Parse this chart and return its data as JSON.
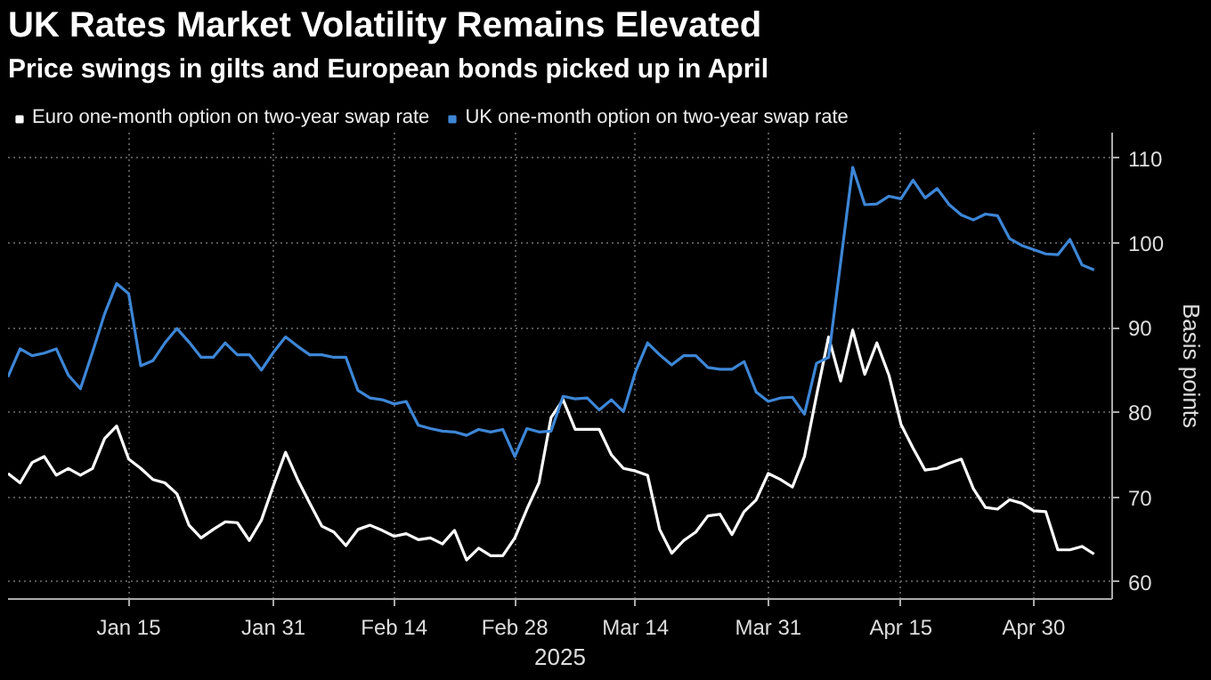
{
  "chart_data": {
    "type": "line",
    "title": "UK Rates Market Volatility Remains Elevated",
    "subtitle": "Price swings in gilts and European bonds picked up in April",
    "xlabel": "2025",
    "ylabel": "Basis points",
    "categories": [
      null,
      null,
      null,
      null,
      null,
      null,
      null,
      null,
      null,
      null,
      "Jan 15",
      null,
      null,
      null,
      null,
      null,
      null,
      null,
      null,
      null,
      null,
      null,
      "Jan 31",
      null,
      null,
      null,
      null,
      null,
      null,
      null,
      null,
      null,
      "Feb 14",
      null,
      null,
      null,
      null,
      null,
      null,
      null,
      null,
      null,
      "Feb 28",
      null,
      null,
      null,
      null,
      null,
      null,
      null,
      null,
      null,
      "Mar 14",
      null,
      null,
      null,
      null,
      null,
      null,
      null,
      null,
      null,
      null,
      "Mar 31",
      null,
      null,
      null,
      null,
      null,
      null,
      null,
      null,
      null,
      null,
      "Apr 15",
      null,
      null,
      null,
      null,
      null,
      null,
      null,
      null,
      null,
      null,
      "Apr 30",
      null,
      null,
      null,
      null,
      null
    ],
    "series": [
      {
        "name": "Euro one-month option on two-year swap rate",
        "color": "#ffffff",
        "values": [
          72.8,
          71.7,
          74.1,
          74.8,
          72.6,
          73.4,
          72.6,
          73.4,
          76.9,
          78.4,
          74.5,
          73.4,
          72.1,
          71.7,
          70.4,
          66.7,
          65.2,
          66.2,
          67.1,
          67.0,
          64.9,
          67.3,
          71.4,
          75.3,
          72.1,
          69.3,
          66.6,
          65.9,
          64.3,
          66.2,
          66.7,
          66.1,
          65.4,
          65.7,
          65.0,
          65.2,
          64.5,
          66.1,
          62.6,
          64.0,
          63.1,
          63.1,
          65.2,
          68.6,
          71.7,
          79.4,
          81.5,
          78.0,
          78.0,
          78.0,
          75.0,
          73.4,
          73.1,
          72.6,
          66.2,
          63.4,
          64.9,
          65.9,
          67.8,
          68.0,
          65.6,
          68.3,
          69.7,
          72.8,
          72.1,
          71.2,
          74.8,
          82.0,
          88.9,
          83.7,
          89.7,
          84.5,
          88.2,
          84.4,
          78.6,
          75.8,
          73.2,
          73.4,
          74.0,
          74.5,
          71.0,
          68.8,
          68.6,
          69.7,
          69.3,
          68.4,
          68.3,
          63.8,
          63.8,
          64.2,
          63.3
        ]
      },
      {
        "name": "UK one-month option on two-year swap rate",
        "color": "#3d86d6",
        "values": [
          84.2,
          87.5,
          86.7,
          87.0,
          87.5,
          84.4,
          82.8,
          87.1,
          91.6,
          95.2,
          94.0,
          85.5,
          86.1,
          88.2,
          89.9,
          88.3,
          86.5,
          86.5,
          88.2,
          86.8,
          86.8,
          85.0,
          87.1,
          88.9,
          87.8,
          86.8,
          86.8,
          86.5,
          86.5,
          82.6,
          81.7,
          81.5,
          81.0,
          81.3,
          78.5,
          78.1,
          77.8,
          77.7,
          77.3,
          78.0,
          77.7,
          78.0,
          74.8,
          78.1,
          77.7,
          77.8,
          81.9,
          81.6,
          81.7,
          80.3,
          81.5,
          80.1,
          84.8,
          88.2,
          86.8,
          85.6,
          86.7,
          86.7,
          85.3,
          85.1,
          85.1,
          86.0,
          82.4,
          81.3,
          81.7,
          81.8,
          79.8,
          85.8,
          86.5,
          97.7,
          108.9,
          104.5,
          104.6,
          105.5,
          105.2,
          107.4,
          105.3,
          106.4,
          104.5,
          103.3,
          102.7,
          103.4,
          103.2,
          100.5,
          99.7,
          99.2,
          98.7,
          98.6,
          100.4,
          97.4,
          96.8
        ]
      }
    ],
    "ylim": [
      58,
      113
    ],
    "yticks": [
      60,
      70,
      80,
      90,
      100,
      110
    ],
    "grid": true,
    "legend": "top",
    "marker": "none",
    "line_style": "solid"
  }
}
